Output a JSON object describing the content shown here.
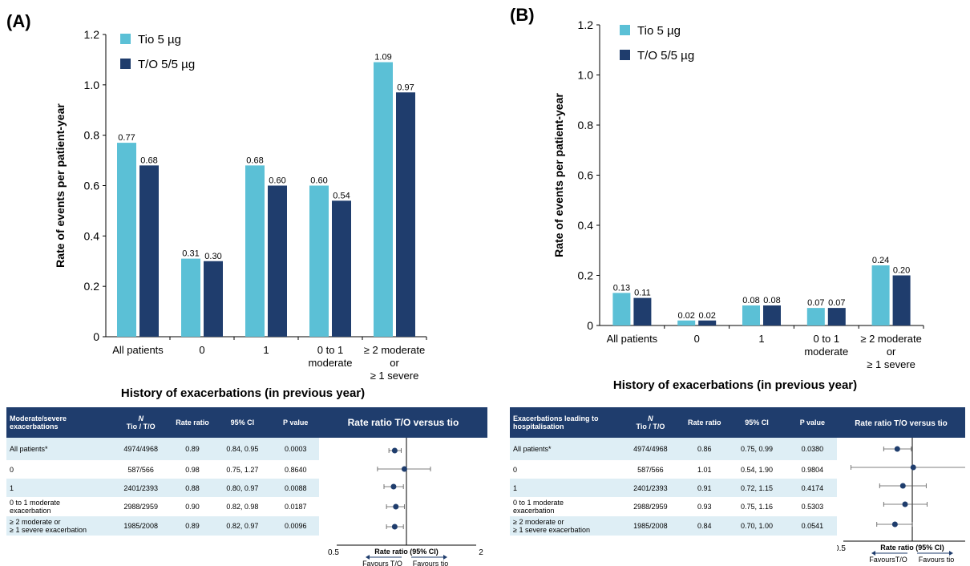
{
  "panels": [
    {
      "label": "(A)",
      "chart_data": {
        "type": "bar",
        "categories": [
          "All patients",
          "0",
          "1",
          "0 to 1\nmoderate",
          "≥ 2 moderate\nor\n≥ 1 severe"
        ],
        "series": [
          {
            "name": "Tio 5 µg",
            "color": "#5bc0d6",
            "values": [
              0.77,
              0.31,
              0.68,
              0.6,
              1.09
            ]
          },
          {
            "name": "T/O 5/5 µg",
            "color": "#1f3d6d",
            "values": [
              0.68,
              0.3,
              0.6,
              0.54,
              0.97
            ]
          }
        ],
        "xlabel": "History of exacerbations (in previous year)",
        "ylabel": "Rate of events per patient-year",
        "ylim": [
          0,
          1.2
        ],
        "yticks": [
          "0",
          "0.2",
          "0.4",
          "0.6",
          "0.8",
          "1.0",
          "1.2"
        ],
        "legend": "top-left"
      },
      "table": {
        "headers": [
          "Moderate/severe exacerbations",
          "N\nTio / T/O",
          "Rate ratio",
          "95% CI",
          "P value",
          "Rate ratio T/O versus tio"
        ],
        "rows": [
          {
            "label": "All patients*",
            "n": "4974/4968",
            "rr": "0.89",
            "ci": "0.84, 0.95",
            "p": "0.0003"
          },
          {
            "label": "0",
            "n": "587/566",
            "rr": "0.98",
            "ci": "0.75, 1.27",
            "p": "0.8640"
          },
          {
            "label": "1",
            "n": "2401/2393",
            "rr": "0.88",
            "ci": "0.80, 0.97",
            "p": "0.0088"
          },
          {
            "label": "0 to 1 moderate\nexacerbation",
            "n": "2988/2959",
            "rr": "0.90",
            "ci": "0.82, 0.98",
            "p": "0.0187"
          },
          {
            "label": "≥ 2 moderate or\n≥ 1 severe exacerbation",
            "n": "1985/2008",
            "rr": "0.89",
            "ci": "0.82, 0.97",
            "p": "0.0096"
          }
        ]
      },
      "forest": {
        "xlabel": "Rate ratio (95% CI)",
        "xmin_label": "0.5",
        "xmax_label": "2",
        "favours_left": "Favours T/O",
        "favours_right": "Favours tio",
        "points": [
          {
            "rr": 0.89,
            "lo": 0.84,
            "hi": 0.95
          },
          {
            "rr": 0.98,
            "lo": 0.75,
            "hi": 1.27
          },
          {
            "rr": 0.88,
            "lo": 0.8,
            "hi": 0.97
          },
          {
            "rr": 0.9,
            "lo": 0.82,
            "hi": 0.98
          },
          {
            "rr": 0.89,
            "lo": 0.82,
            "hi": 0.97
          }
        ]
      }
    },
    {
      "label": "(B)",
      "chart_data": {
        "type": "bar",
        "categories": [
          "All patients",
          "0",
          "1",
          "0 to 1\nmoderate",
          "≥ 2 moderate\nor\n≥ 1 severe"
        ],
        "series": [
          {
            "name": "Tio 5 µg",
            "color": "#5bc0d6",
            "values": [
              0.13,
              0.02,
              0.08,
              0.07,
              0.24
            ]
          },
          {
            "name": "T/O 5/5 µg",
            "color": "#1f3d6d",
            "values": [
              0.11,
              0.02,
              0.08,
              0.07,
              0.2
            ]
          }
        ],
        "xlabel": "History of exacerbations (in previous year)",
        "ylabel": "Rate of events per patient-year",
        "ylim": [
          0,
          1.2
        ],
        "yticks": [
          "0",
          "0.2",
          "0.4",
          "0.6",
          "0.8",
          "1.0",
          "1.2"
        ],
        "legend": "top-left"
      },
      "table": {
        "headers": [
          "Exacerbations leading to hospitalisation",
          "N\nTio / T/O",
          "Rate ratio",
          "95% CI",
          "P value",
          "Rate ratio T/O versus tio"
        ],
        "rows": [
          {
            "label": "All patients*",
            "n": "4974/4968",
            "rr": "0.86",
            "ci": "0.75, 0.99",
            "p": "0.0380"
          },
          {
            "label": "0",
            "n": "587/566",
            "rr": "1.01",
            "ci": "0.54, 1.90",
            "p": "0.9804"
          },
          {
            "label": "1",
            "n": "2401/2393",
            "rr": "0.91",
            "ci": "0.72, 1.15",
            "p": "0.4174"
          },
          {
            "label": "0 to 1 moderate\nexacerbation",
            "n": "2988/2959",
            "rr": "0.93",
            "ci": "0.75, 1.16",
            "p": "0.5303"
          },
          {
            "label": "≥ 2 moderate or\n≥ 1 severe exacerbation",
            "n": "1985/2008",
            "rr": "0.84",
            "ci": "0.70, 1.00",
            "p": "0.0541"
          }
        ]
      },
      "forest": {
        "xlabel": "Rate ratio (95% CI)",
        "xmin_label": "0.5",
        "xmax_label": "",
        "favours_left": "FavoursT/O",
        "favours_right": "Favours tio",
        "points": [
          {
            "rr": 0.86,
            "lo": 0.75,
            "hi": 0.99
          },
          {
            "rr": 1.01,
            "lo": 0.54,
            "hi": 1.9
          },
          {
            "rr": 0.91,
            "lo": 0.72,
            "hi": 1.15
          },
          {
            "rr": 0.93,
            "lo": 0.75,
            "hi": 1.16
          },
          {
            "rr": 0.84,
            "lo": 0.7,
            "hi": 1.0
          }
        ]
      }
    }
  ]
}
